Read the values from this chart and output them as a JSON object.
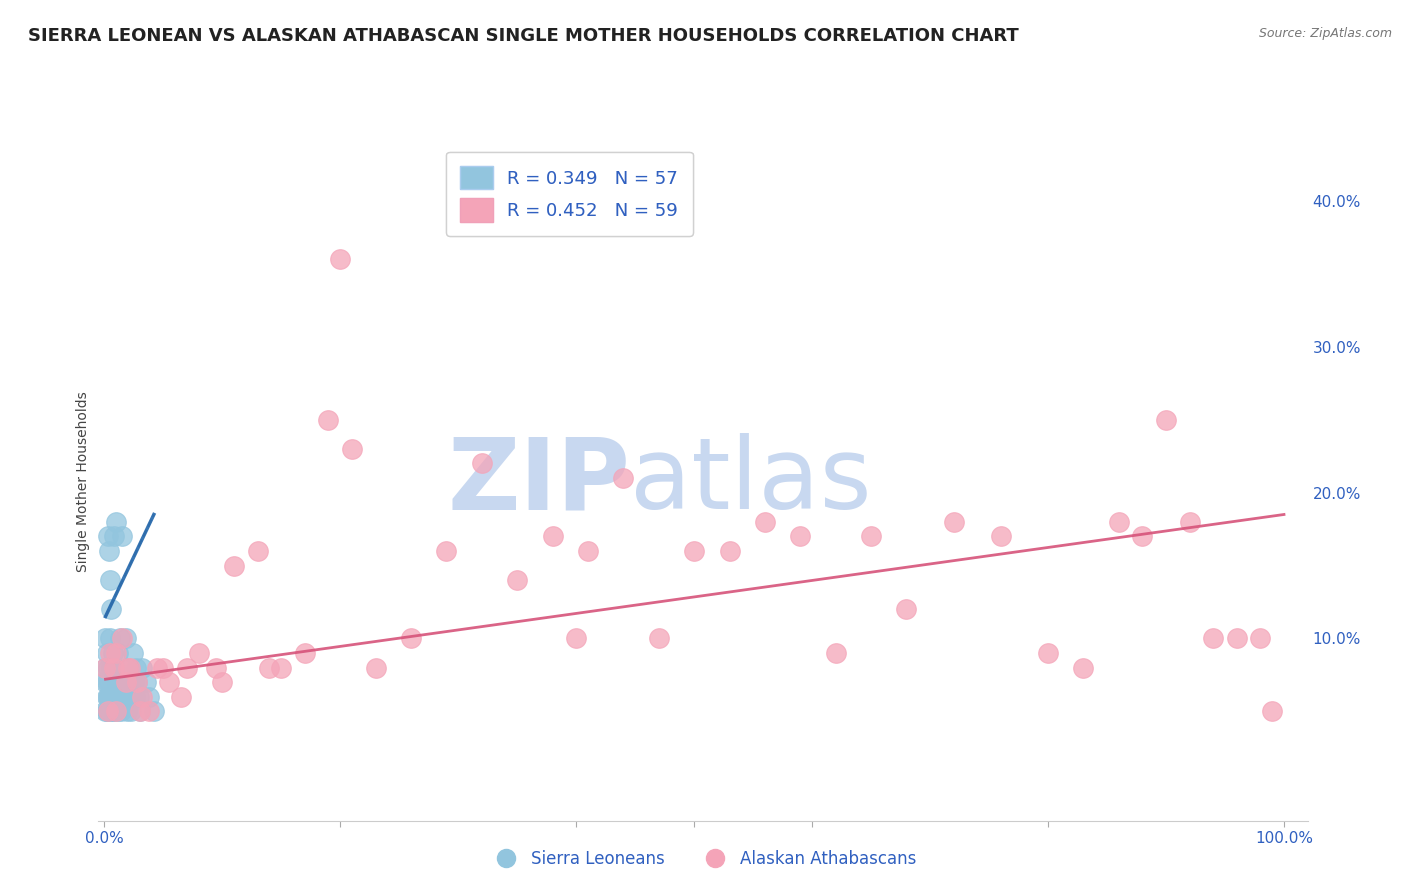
{
  "title": "SIERRA LEONEAN VS ALASKAN ATHABASCAN SINGLE MOTHER HOUSEHOLDS CORRELATION CHART",
  "source": "Source: ZipAtlas.com",
  "ylabel": "Single Mother Households",
  "ytick_labels": [
    "10.0%",
    "20.0%",
    "30.0%",
    "40.0%"
  ],
  "ytick_values": [
    0.1,
    0.2,
    0.3,
    0.4
  ],
  "xlim": [
    -0.005,
    1.02
  ],
  "ylim": [
    -0.025,
    0.44
  ],
  "legend_r1": "R = 0.349",
  "legend_n1": "N = 57",
  "legend_r2": "R = 0.452",
  "legend_n2": "N = 59",
  "color_blue": "#92c5de",
  "color_blue_line": "#2166ac",
  "color_pink": "#f4a4b8",
  "color_pink_line": "#d6537a",
  "color_blue_text": "#3060c0",
  "watermark_zip": "ZIP",
  "watermark_atlas": "atlas",
  "watermark_color": "#c8d8f0",
  "title_fontsize": 13,
  "label_fontsize": 10,
  "tick_fontsize": 11,
  "sierra_x": [
    0.001,
    0.001,
    0.001,
    0.001,
    0.002,
    0.002,
    0.002,
    0.002,
    0.003,
    0.003,
    0.003,
    0.003,
    0.004,
    0.004,
    0.004,
    0.004,
    0.005,
    0.005,
    0.005,
    0.005,
    0.006,
    0.006,
    0.006,
    0.007,
    0.007,
    0.008,
    0.008,
    0.009,
    0.009,
    0.01,
    0.01,
    0.011,
    0.012,
    0.012,
    0.013,
    0.013,
    0.014,
    0.015,
    0.016,
    0.017,
    0.018,
    0.019,
    0.02,
    0.021,
    0.022,
    0.023,
    0.024,
    0.025,
    0.026,
    0.027,
    0.028,
    0.029,
    0.03,
    0.032,
    0.035,
    0.038,
    0.042
  ],
  "sierra_y": [
    0.05,
    0.07,
    0.08,
    0.1,
    0.05,
    0.06,
    0.07,
    0.09,
    0.05,
    0.06,
    0.08,
    0.17,
    0.05,
    0.06,
    0.07,
    0.16,
    0.05,
    0.06,
    0.1,
    0.14,
    0.05,
    0.08,
    0.12,
    0.05,
    0.09,
    0.06,
    0.17,
    0.05,
    0.08,
    0.06,
    0.18,
    0.07,
    0.05,
    0.09,
    0.06,
    0.1,
    0.05,
    0.17,
    0.07,
    0.06,
    0.1,
    0.05,
    0.08,
    0.07,
    0.06,
    0.05,
    0.09,
    0.07,
    0.06,
    0.08,
    0.07,
    0.06,
    0.05,
    0.08,
    0.07,
    0.06,
    0.05
  ],
  "alaska_x": [
    0.001,
    0.003,
    0.005,
    0.008,
    0.01,
    0.015,
    0.018,
    0.022,
    0.028,
    0.032,
    0.038,
    0.045,
    0.055,
    0.065,
    0.08,
    0.095,
    0.11,
    0.13,
    0.15,
    0.17,
    0.19,
    0.21,
    0.23,
    0.26,
    0.29,
    0.32,
    0.35,
    0.38,
    0.41,
    0.44,
    0.47,
    0.5,
    0.53,
    0.56,
    0.59,
    0.62,
    0.65,
    0.68,
    0.72,
    0.76,
    0.8,
    0.83,
    0.86,
    0.88,
    0.9,
    0.92,
    0.94,
    0.96,
    0.98,
    0.99,
    0.01,
    0.02,
    0.03,
    0.05,
    0.07,
    0.1,
    0.14,
    0.2,
    0.4
  ],
  "alaska_y": [
    0.08,
    0.05,
    0.09,
    0.08,
    0.05,
    0.1,
    0.07,
    0.08,
    0.07,
    0.06,
    0.05,
    0.08,
    0.07,
    0.06,
    0.09,
    0.08,
    0.15,
    0.16,
    0.08,
    0.09,
    0.25,
    0.23,
    0.08,
    0.1,
    0.16,
    0.22,
    0.14,
    0.17,
    0.16,
    0.21,
    0.1,
    0.16,
    0.16,
    0.18,
    0.17,
    0.09,
    0.17,
    0.12,
    0.18,
    0.17,
    0.09,
    0.08,
    0.18,
    0.17,
    0.25,
    0.18,
    0.1,
    0.1,
    0.1,
    0.05,
    0.09,
    0.08,
    0.05,
    0.08,
    0.08,
    0.07,
    0.08,
    0.36,
    0.1
  ],
  "sierra_line_x": [
    0.001,
    0.042
  ],
  "sierra_line_y": [
    0.115,
    0.185
  ],
  "alaska_line_x": [
    0.001,
    1.0
  ],
  "alaska_line_y": [
    0.072,
    0.185
  ]
}
